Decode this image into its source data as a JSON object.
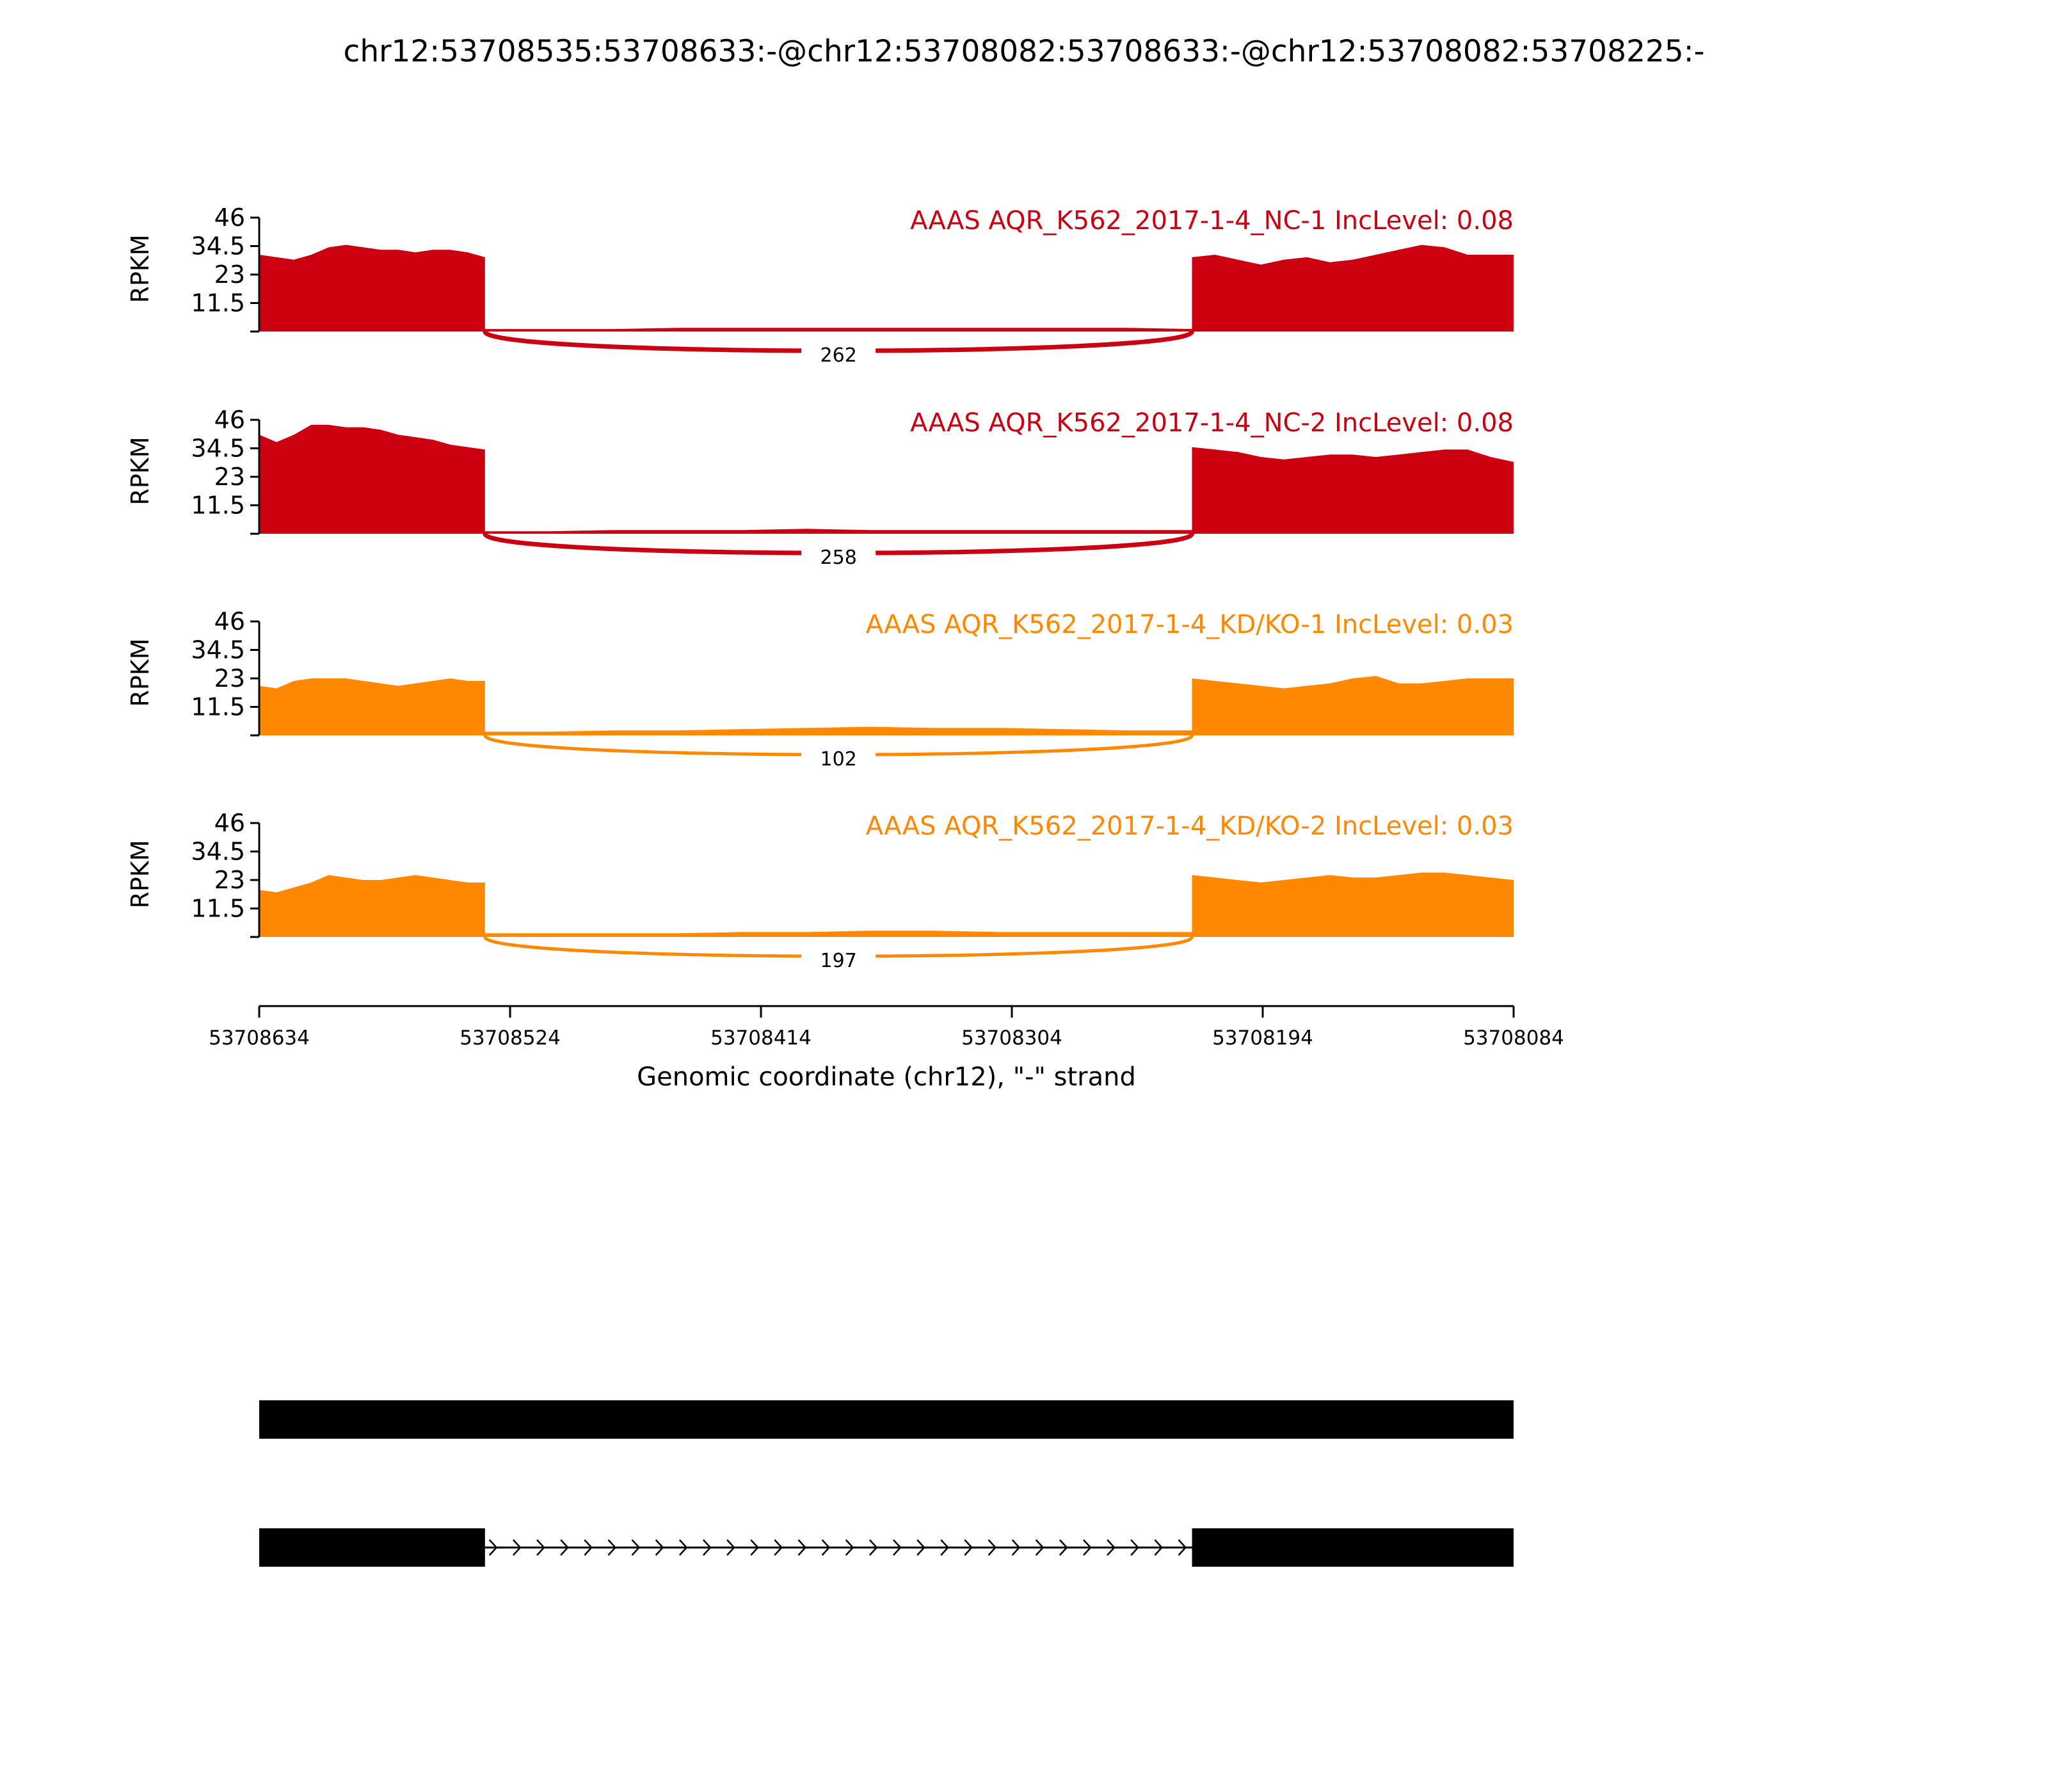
{
  "chart_data": {
    "type": "area",
    "title": "chr12:53708535:53708633:-@chr12:53708082:53708633:-@chr12:53708082:53708225:-",
    "xlabel": "Genomic coordinate (chr12), \"-\" strand",
    "ylabel": "RPKM",
    "xlim": [
      53708634,
      53708084
    ],
    "x_ticks": [
      "53708634",
      "53708524",
      "53708414",
      "53708304",
      "53708194",
      "53708084"
    ],
    "ylim": [
      0,
      46
    ],
    "y_ticks": [
      "46",
      "34.5",
      "23",
      "11.5"
    ],
    "exons": [
      {
        "start": 53708634,
        "end": 53708535
      },
      {
        "start": 53708225,
        "end": 53708084
      }
    ],
    "colors": {
      "NC": "#cc0011",
      "KD": "#ff8800",
      "gene": "#000000"
    },
    "series": [
      {
        "name": "AAAS AQR_K562_2017-1-4_NC-1",
        "label": "AAAS AQR_K562_2017-1-4_NC-1 IncLevel: 0.08",
        "inclevel": 0.08,
        "color": "#cc0011",
        "junction_count": "262",
        "exon1_rpkm": [
          31,
          30,
          29,
          31,
          34,
          35,
          34,
          33,
          33,
          32,
          33,
          33,
          32,
          30
        ],
        "intron_rpkm": [
          1,
          1,
          1,
          1.5,
          1.5,
          1.5,
          1.5,
          1.5,
          1.5,
          1.5,
          1.5,
          1
        ],
        "exon2_rpkm": [
          30,
          31,
          29,
          27,
          29,
          30,
          28,
          29,
          31,
          33,
          35,
          34,
          31,
          31,
          31
        ]
      },
      {
        "name": "AAAS AQR_K562_2017-1-4_NC-2",
        "label": "AAAS AQR_K562_2017-1-4_NC-2 IncLevel: 0.08",
        "inclevel": 0.08,
        "color": "#cc0011",
        "junction_count": "258",
        "exon1_rpkm": [
          40,
          37,
          40,
          44,
          44,
          43,
          43,
          42,
          40,
          39,
          38,
          36,
          35,
          34
        ],
        "intron_rpkm": [
          1,
          1,
          1.5,
          1.5,
          1.5,
          2,
          1.5,
          1.5,
          1.5,
          1.5,
          1.5,
          1.5
        ],
        "exon2_rpkm": [
          35,
          34,
          33,
          31,
          30,
          31,
          32,
          32,
          31,
          32,
          33,
          34,
          34,
          31,
          29
        ]
      },
      {
        "name": "AAAS AQR_K562_2017-1-4_KD/KO-1",
        "label": "AAAS AQR_K562_2017-1-4_KD/KO-1 IncLevel: 0.03",
        "inclevel": 0.03,
        "color": "#ff8800",
        "junction_count": "102",
        "exon1_rpkm": [
          20,
          19,
          22,
          23,
          23,
          23,
          22,
          21,
          20,
          21,
          22,
          23,
          22,
          22
        ],
        "intron_rpkm": [
          1.5,
          1.5,
          2,
          2,
          2.5,
          3,
          3.5,
          3,
          3,
          2.5,
          2,
          2
        ],
        "exon2_rpkm": [
          23,
          22,
          21,
          20,
          19,
          20,
          21,
          23,
          24,
          21,
          21,
          22,
          23,
          23,
          23
        ]
      },
      {
        "name": "AAAS AQR_K562_2017-1-4_KD/KO-2",
        "label": "AAAS AQR_K562_2017-1-4_KD/KO-2 IncLevel: 0.03",
        "inclevel": 0.03,
        "color": "#ff8800",
        "junction_count": "197",
        "exon1_rpkm": [
          19,
          18,
          20,
          22,
          25,
          24,
          23,
          23,
          24,
          25,
          24,
          23,
          22,
          22
        ],
        "intron_rpkm": [
          1.5,
          1.5,
          1.5,
          1.5,
          2,
          2,
          2.5,
          2.5,
          2,
          2,
          2,
          2
        ],
        "exon2_rpkm": [
          25,
          24,
          23,
          22,
          23,
          24,
          25,
          24,
          24,
          25,
          26,
          26,
          25,
          24,
          23
        ]
      }
    ],
    "isoforms": [
      {
        "name": "inclusion",
        "blocks": [
          [
            53708634,
            53708084
          ]
        ]
      },
      {
        "name": "exclusion",
        "blocks": [
          [
            53708634,
            53708535
          ],
          [
            53708225,
            53708084
          ]
        ]
      }
    ]
  }
}
